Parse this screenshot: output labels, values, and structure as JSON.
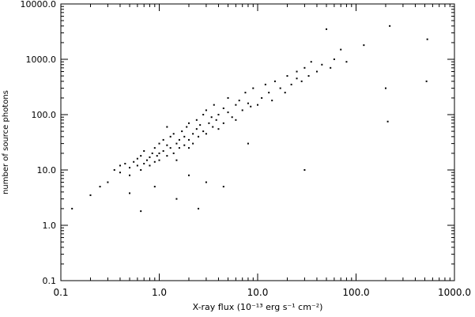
{
  "chart_data": {
    "type": "scatter",
    "xlabel": "X-ray flux  (10⁻¹³ erg s⁻¹ cm⁻²)",
    "ylabel": "number of source photons",
    "log_x": true,
    "log_y": true,
    "color": "#000000",
    "xlim": [
      0.1,
      1000
    ],
    "ylim": [
      0.1,
      10000
    ],
    "xticks": [
      0.1,
      {
        "value": 1,
        "label": "1.0"
      },
      {
        "value": 10,
        "label": "10.0"
      },
      {
        "value": 100,
        "label": "100.0"
      },
      {
        "value": 1000,
        "label": "1000.0"
      }
    ],
    "yticks": [
      0.1,
      {
        "value": 1,
        "label": "1.0"
      },
      {
        "value": 10,
        "label": "10.0"
      },
      {
        "value": 100,
        "label": "100.0"
      },
      {
        "value": 1000,
        "label": "1000.0"
      },
      {
        "value": 10000,
        "label": "10000.0"
      }
    ],
    "x": [
      0.13,
      0.2,
      0.25,
      0.3,
      0.35,
      0.4,
      0.4,
      0.45,
      0.5,
      0.5,
      0.55,
      0.6,
      0.6,
      0.65,
      0.65,
      0.7,
      0.7,
      0.75,
      0.8,
      0.8,
      0.85,
      0.9,
      0.9,
      0.95,
      1.0,
      1.0,
      1.0,
      1.1,
      1.1,
      1.2,
      1.2,
      1.3,
      1.3,
      1.4,
      1.4,
      1.5,
      1.5,
      1.6,
      1.6,
      1.7,
      1.8,
      1.8,
      1.9,
      2.0,
      2.0,
      2.0,
      2.2,
      2.2,
      2.4,
      2.4,
      2.5,
      2.6,
      2.8,
      2.8,
      3.0,
      3.0,
      3.2,
      3.4,
      3.5,
      3.6,
      3.8,
      4.0,
      4.0,
      4.5,
      4.5,
      5.0,
      5.0,
      5.5,
      6.0,
      6.0,
      6.5,
      7.0,
      7.5,
      8.0,
      8.5,
      9.0,
      10,
      11,
      12,
      13,
      14,
      15,
      17,
      19,
      20,
      22,
      25,
      25,
      28,
      30,
      33,
      35,
      40,
      45,
      50,
      55,
      60,
      70,
      80,
      120,
      200,
      210,
      220,
      520,
      530,
      0.65,
      0.5,
      2.5,
      30,
      1.5,
      3.0,
      8.0,
      1.2,
      4.5,
      0.9,
      2.0
    ],
    "values": [
      2,
      3.5,
      5,
      6,
      10,
      12,
      9,
      13,
      11,
      8,
      14,
      12,
      16,
      10,
      18,
      13,
      22,
      15,
      17,
      12,
      20,
      14,
      25,
      18,
      20,
      15,
      30,
      22,
      35,
      18,
      28,
      25,
      40,
      20,
      45,
      30,
      15,
      35,
      25,
      50,
      28,
      40,
      60,
      35,
      25,
      70,
      45,
      30,
      55,
      80,
      40,
      65,
      50,
      100,
      45,
      120,
      70,
      90,
      60,
      150,
      80,
      100,
      55,
      130,
      70,
      110,
      200,
      90,
      150,
      80,
      180,
      120,
      250,
      160,
      140,
      300,
      150,
      200,
      350,
      250,
      180,
      400,
      300,
      250,
      500,
      350,
      450,
      600,
      400,
      700,
      500,
      900,
      600,
      800,
      3500,
      700,
      1000,
      1500,
      900,
      1800,
      300,
      75,
      4000,
      400,
      2300,
      1.8,
      3.8,
      2,
      10,
      3,
      6,
      30,
      60,
      5,
      5,
      8
    ]
  }
}
